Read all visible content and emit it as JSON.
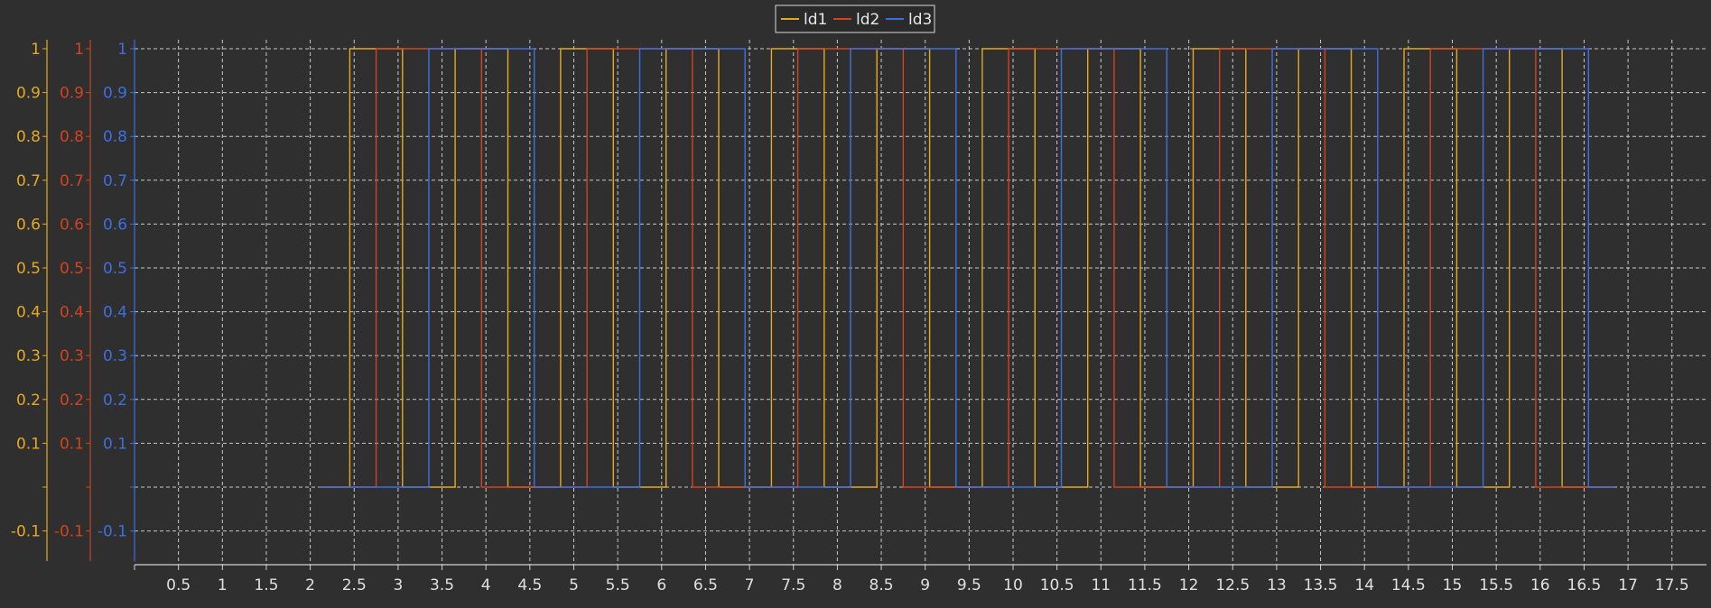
{
  "chart_data": {
    "type": "line",
    "step": true,
    "title": "",
    "xlabel": "",
    "ylabel": "",
    "xlim": [
      0,
      17.9
    ],
    "ylim": [
      -0.18,
      1.04
    ],
    "x_ticks": [
      "0.5",
      "1",
      "1.5",
      "2",
      "2.5",
      "3",
      "3.5",
      "4",
      "4.5",
      "5",
      "5.5",
      "6",
      "6.5",
      "7",
      "7.5",
      "8",
      "8.5",
      "9",
      "9.5",
      "10",
      "10.5",
      "11",
      "11.5",
      "12",
      "12.5",
      "13",
      "13.5",
      "14",
      "14.5",
      "15",
      "15.5",
      "16",
      "16.5",
      "17",
      "17.5"
    ],
    "y_ticks": [
      "-0.1",
      "",
      "0.1",
      "0.2",
      "0.3",
      "0.4",
      "0.5",
      "0.6",
      "0.7",
      "0.8",
      "0.9",
      "1"
    ],
    "grid": true,
    "legend_position": "top-center",
    "series": [
      {
        "name": "ld1",
        "color": "#e5a823",
        "x": [
          2.1,
          2.45,
          2.45,
          3.05,
          3.05,
          3.65,
          3.65,
          4.25,
          4.25,
          4.85,
          4.85,
          5.45,
          5.45,
          6.05,
          6.05,
          6.65,
          6.65,
          7.25,
          7.25,
          7.85,
          7.85,
          8.45,
          8.45,
          9.05,
          9.05,
          9.65,
          9.65,
          10.25,
          10.25,
          10.85,
          10.85,
          11.45,
          11.45,
          12.05,
          12.05,
          12.65,
          12.65,
          13.25,
          13.25,
          13.85,
          13.85,
          14.45,
          14.45,
          15.05,
          15.05,
          15.65,
          15.65,
          16.25,
          16.25,
          16.85
        ],
        "y": [
          0,
          0,
          1,
          1,
          0,
          0,
          1,
          1,
          0,
          0,
          1,
          1,
          0,
          0,
          1,
          1,
          0,
          0,
          1,
          1,
          0,
          0,
          1,
          1,
          0,
          0,
          1,
          1,
          0,
          0,
          1,
          1,
          0,
          0,
          1,
          1,
          0,
          0,
          1,
          1,
          0,
          0,
          1,
          1,
          0,
          0,
          1,
          1,
          0,
          0
        ]
      },
      {
        "name": "ld2",
        "color": "#d2431f",
        "x": [
          2.1,
          2.75,
          2.75,
          3.95,
          3.95,
          5.15,
          5.15,
          6.35,
          6.35,
          7.55,
          7.55,
          8.75,
          8.75,
          9.95,
          9.95,
          11.15,
          11.15,
          12.35,
          12.35,
          13.55,
          13.55,
          14.75,
          14.75,
          15.95,
          15.95,
          16.85
        ],
        "y": [
          0,
          0,
          1,
          1,
          0,
          0,
          1,
          1,
          0,
          0,
          1,
          1,
          0,
          0,
          1,
          1,
          0,
          0,
          1,
          1,
          0,
          0,
          1,
          1,
          0,
          0
        ]
      },
      {
        "name": "ld3",
        "color": "#3e6fe0",
        "x": [
          2.1,
          3.35,
          3.35,
          4.55,
          4.55,
          5.75,
          5.75,
          6.95,
          6.95,
          8.15,
          8.15,
          9.35,
          9.35,
          10.55,
          10.55,
          11.75,
          11.75,
          12.95,
          12.95,
          14.15,
          14.15,
          15.35,
          15.35,
          16.55,
          16.55,
          16.85
        ],
        "y": [
          0,
          0,
          1,
          1,
          0,
          0,
          1,
          1,
          0,
          0,
          1,
          1,
          0,
          0,
          1,
          1,
          0,
          0,
          1,
          1,
          0,
          0,
          1,
          1,
          0,
          0
        ]
      }
    ]
  }
}
